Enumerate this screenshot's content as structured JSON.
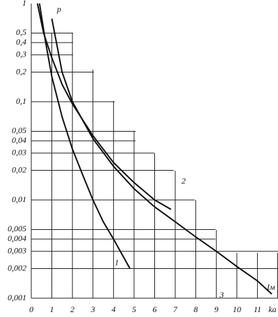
{
  "chart_data": {
    "type": "line",
    "x_label": "ka",
    "y_label": "p",
    "annotation": "Iм",
    "xlim": [
      0,
      12
    ],
    "xticks": [
      0,
      1,
      2,
      3,
      4,
      5,
      6,
      7,
      8,
      9,
      10,
      11
    ],
    "ylim": [
      0.001,
      1
    ],
    "log_y": true,
    "yticks": [
      1,
      {
        "value": 0.5,
        "label": "0,5"
      },
      {
        "value": 0.4,
        "label": "0,4"
      },
      {
        "value": 0.3,
        "label": "0,3"
      },
      {
        "value": 0.2,
        "label": "0,2"
      },
      {
        "value": 0.1,
        "label": "0,1"
      },
      {
        "value": 0.05,
        "label": "0,05"
      },
      {
        "value": 0.04,
        "label": "0,04"
      },
      {
        "value": 0.03,
        "label": "0,03"
      },
      {
        "value": 0.02,
        "label": "0,02"
      },
      {
        "value": 0.01,
        "label": "0,01"
      },
      {
        "value": 0.005,
        "label": "0,005"
      },
      {
        "value": 0.004,
        "label": "0,004"
      },
      {
        "value": 0.003,
        "label": "0,003"
      },
      {
        "value": 0.002,
        "label": "0,002"
      },
      {
        "value": 0.001,
        "label": "0,001"
      }
    ],
    "series": [
      {
        "name": "1",
        "color": "#111111",
        "x": [
          0.4,
          0.7,
          1,
          1.5,
          2,
          2.5,
          3,
          3.5,
          4,
          4.8
        ],
        "values": [
          1,
          0.4,
          0.18,
          0.07,
          0.033,
          0.018,
          0.01,
          0.006,
          0.004,
          0.002
        ]
      },
      {
        "name": "2",
        "color": "#111111",
        "x": [
          0.3,
          0.6,
          1,
          1.5,
          2,
          3,
          4,
          5,
          6,
          6.8
        ],
        "values": [
          1,
          0.5,
          0.28,
          0.15,
          0.095,
          0.045,
          0.024,
          0.015,
          0.01,
          0.008
        ]
      },
      {
        "name": "3",
        "color": "#111111",
        "x": [
          1,
          1.5,
          2,
          3,
          4,
          5,
          6,
          7,
          8,
          9,
          10,
          11,
          11.7
        ],
        "values": [
          0.7,
          0.2,
          0.1,
          0.042,
          0.022,
          0.013,
          0.0085,
          0.006,
          0.0042,
          0.003,
          0.0021,
          0.0015,
          0.0011
        ]
      }
    ]
  }
}
